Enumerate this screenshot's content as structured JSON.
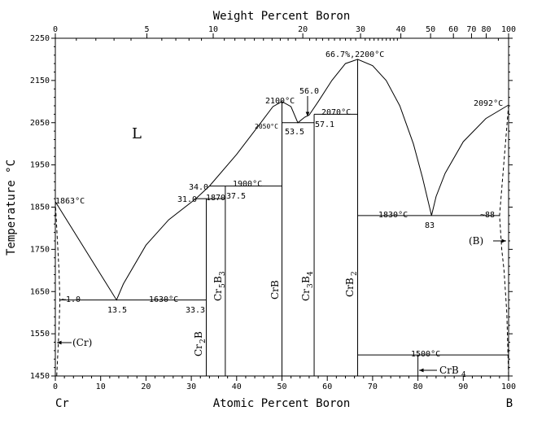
{
  "chart_data": {
    "type": "line",
    "title": "",
    "xlabel": "Atomic Percent Boron",
    "x2label": "Weight Percent Boron",
    "ylabel": "Temperature °C",
    "xlim": [
      0,
      100
    ],
    "ylim": [
      1450,
      2250
    ],
    "xticks": [
      0,
      10,
      20,
      30,
      40,
      50,
      60,
      70,
      80,
      90,
      100
    ],
    "x2ticks": [
      0,
      5,
      10,
      20,
      30,
      40,
      50,
      60,
      70,
      80,
      100
    ],
    "yticks": [
      1450,
      1550,
      1650,
      1750,
      1850,
      1950,
      2050,
      2150,
      2250
    ],
    "end_left": "Cr",
    "end_right": "B",
    "liquidus": [
      [
        0,
        1863
      ],
      [
        13.5,
        1630
      ],
      [
        15,
        1668
      ],
      [
        20,
        1760
      ],
      [
        25,
        1820
      ],
      [
        31,
        1870
      ],
      [
        34,
        1900
      ],
      [
        40,
        1975
      ],
      [
        45,
        2045
      ],
      [
        48,
        2088
      ],
      [
        50,
        2100
      ],
      [
        52,
        2088
      ],
      [
        53.5,
        2050
      ],
      [
        55,
        2063
      ],
      [
        56,
        2068
      ],
      [
        58,
        2100
      ],
      [
        61,
        2150
      ],
      [
        64,
        2190
      ],
      [
        66.7,
        2200
      ],
      [
        70,
        2185
      ],
      [
        73,
        2150
      ],
      [
        76,
        2090
      ],
      [
        79,
        2000
      ],
      [
        81,
        1920
      ],
      [
        83,
        1830
      ],
      [
        84,
        1875
      ],
      [
        86,
        1930
      ],
      [
        90,
        2005
      ],
      [
        95,
        2060
      ],
      [
        100,
        2092
      ]
    ],
    "solvus_dashed": [
      [
        [
          0,
          1863
        ],
        [
          0.8,
          1700
        ],
        [
          1,
          1630
        ],
        [
          0.8,
          1560
        ],
        [
          0.3,
          1450
        ]
      ],
      [
        [
          100,
          2092
        ],
        [
          98,
          1830
        ],
        [
          98.5,
          1750
        ],
        [
          99,
          1700
        ],
        [
          99.6,
          1600
        ],
        [
          100,
          1450
        ]
      ]
    ],
    "isotherms": [
      {
        "T": 1630,
        "x": [
          1,
          33.3
        ]
      },
      {
        "T": 1870,
        "x": [
          31,
          37.5
        ]
      },
      {
        "T": 1900,
        "x": [
          34,
          50
        ]
      },
      {
        "T": 2050,
        "x": [
          50,
          57.1
        ]
      },
      {
        "T": 2070,
        "x": [
          57.1,
          66.7
        ]
      },
      {
        "T": 1830,
        "x": [
          66.7,
          98
        ]
      },
      {
        "T": 1500,
        "x": [
          66.7,
          100
        ]
      }
    ],
    "compounds": [
      {
        "x": 33.3,
        "Tmax": 1870
      },
      {
        "x": 37.5,
        "Tmax": 1900
      },
      {
        "x": 50,
        "Tmax": 2100
      },
      {
        "x": 57.1,
        "Tmax": 2070
      },
      {
        "x": 66.7,
        "Tmax": 2200
      },
      {
        "x": 80,
        "Tmax": 1500
      }
    ],
    "annotations": {
      "L": "L",
      "t1863": "1863°C",
      "t1630": "1630°C",
      "c13_5": "13.5",
      "c33_3": "33.3",
      "c1_0": "~1.0",
      "c31_0": "31.0",
      "c34_0": "34.0",
      "t1870": "1870",
      "c37_5": "37.5",
      "t1900": "1900°C",
      "t2100": "2100°C",
      "t2050": "2050°C",
      "c53_5": "53.5",
      "c56_0": "56.0",
      "c57_1": "57.1",
      "t2070": "2070°C",
      "t2200": "66.7%,2200°C",
      "t1830": "1830°C",
      "c83": "83",
      "c88": "~88",
      "t2092": "2092°C",
      "t1500": "1500°C",
      "Cr": "(Cr)",
      "B": "(B)",
      "Cr2B_a": "Cr",
      "Cr2B_b": "2",
      "Cr2B_c": "B",
      "Cr5B3_a": "Cr",
      "Cr5B3_b": "5",
      "Cr5B3_c": "B",
      "Cr5B3_d": "3",
      "CrB": "CrB",
      "Cr3B4_a": "Cr",
      "Cr3B4_b": "3",
      "Cr3B4_c": "B",
      "Cr3B4_d": "4",
      "CrB2_a": "CrB",
      "CrB2_b": "2",
      "CrB4_a": "CrB",
      "CrB4_b": "4"
    }
  }
}
